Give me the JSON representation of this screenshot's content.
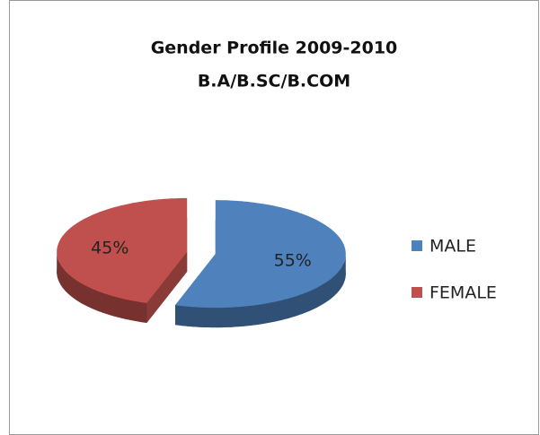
{
  "chart_data": {
    "type": "pie",
    "title": "Gender Profile 2009-2010",
    "subtitle": "B.A/B.SC/B.COM",
    "categories": [
      "MALE",
      "FEMALE"
    ],
    "values": [
      55,
      45
    ],
    "value_labels": [
      "55%",
      "45%"
    ],
    "colors": [
      "#4f81bd",
      "#c0504d"
    ],
    "legend": "right"
  }
}
